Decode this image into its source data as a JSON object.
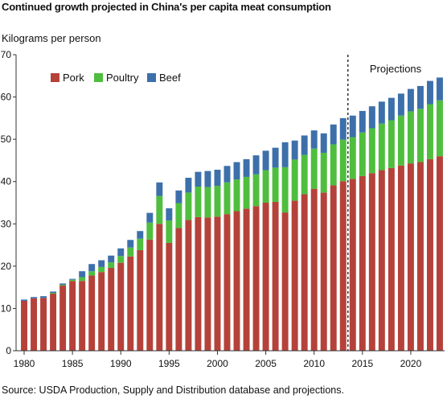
{
  "title": "Continued growth projected in China's per capita meat consumption",
  "source": "Source: USDA Production, Supply and Distribution database and projections.",
  "colors": {
    "pork": "#b5423a",
    "poultry": "#4fbe3e",
    "beef": "#3d70aa",
    "axis": "#333333"
  },
  "chart_data": {
    "type": "bar",
    "stacked": true,
    "ylabel": "Kilograms per person",
    "ylim": [
      0,
      70
    ],
    "yticks": [
      0,
      10,
      20,
      30,
      40,
      50,
      60,
      70
    ],
    "xticks": [
      "1980",
      "1985",
      "1990",
      "1995",
      "2000",
      "2005",
      "2010",
      "2015",
      "2020"
    ],
    "legend": {
      "position": "top-left",
      "items": [
        "Pork",
        "Poultry",
        "Beef"
      ]
    },
    "annotation": {
      "text": "Projections",
      "divider_after_year": 2013
    },
    "categories": [
      1980,
      1981,
      1982,
      1983,
      1984,
      1985,
      1986,
      1987,
      1988,
      1989,
      1990,
      1991,
      1992,
      1993,
      1994,
      1995,
      1996,
      1997,
      1998,
      1999,
      2000,
      2001,
      2002,
      2003,
      2004,
      2005,
      2006,
      2007,
      2008,
      2009,
      2010,
      2011,
      2012,
      2013,
      2014,
      2015,
      2016,
      2017,
      2018,
      2019,
      2020,
      2021,
      2022,
      2023
    ],
    "series": [
      {
        "name": "Pork",
        "values": [
          11.8,
          12.4,
          12.5,
          13.5,
          15.4,
          16.5,
          16.5,
          17.8,
          18.6,
          19.6,
          20.8,
          22.3,
          23.8,
          26.3,
          30.0,
          25.5,
          29.0,
          30.9,
          31.6,
          31.5,
          31.7,
          32.3,
          33.0,
          33.6,
          34.2,
          35.0,
          35.2,
          32.7,
          35.5,
          37.0,
          38.3,
          37.4,
          39.1,
          40.1,
          40.6,
          41.3,
          42.0,
          42.7,
          43.2,
          43.8,
          44.3,
          44.6,
          45.3,
          46.0
        ]
      },
      {
        "name": "Poultry",
        "values": [
          0.0,
          0.0,
          0.0,
          0.2,
          0.2,
          0.3,
          0.9,
          1.0,
          1.2,
          1.3,
          1.6,
          2.1,
          2.7,
          4.0,
          6.6,
          5.3,
          5.9,
          6.5,
          7.2,
          7.2,
          7.3,
          7.5,
          7.5,
          7.5,
          7.5,
          7.7,
          8.1,
          10.7,
          9.7,
          9.3,
          9.5,
          9.4,
          9.7,
          9.8,
          9.9,
          10.3,
          10.6,
          11.0,
          11.3,
          11.8,
          12.3,
          12.6,
          13.0,
          13.2
        ]
      },
      {
        "name": "Beef",
        "values": [
          0.3,
          0.3,
          0.4,
          0.3,
          0.3,
          0.2,
          1.4,
          1.7,
          1.6,
          1.6,
          1.8,
          1.8,
          1.8,
          2.3,
          3.2,
          2.9,
          3.0,
          3.5,
          3.5,
          3.8,
          3.8,
          3.9,
          4.1,
          4.2,
          4.5,
          4.6,
          4.7,
          5.9,
          4.5,
          4.6,
          4.3,
          4.6,
          4.7,
          5.1,
          5.1,
          5.1,
          5.2,
          5.2,
          5.3,
          5.2,
          5.3,
          5.4,
          5.5,
          5.4
        ]
      }
    ]
  }
}
